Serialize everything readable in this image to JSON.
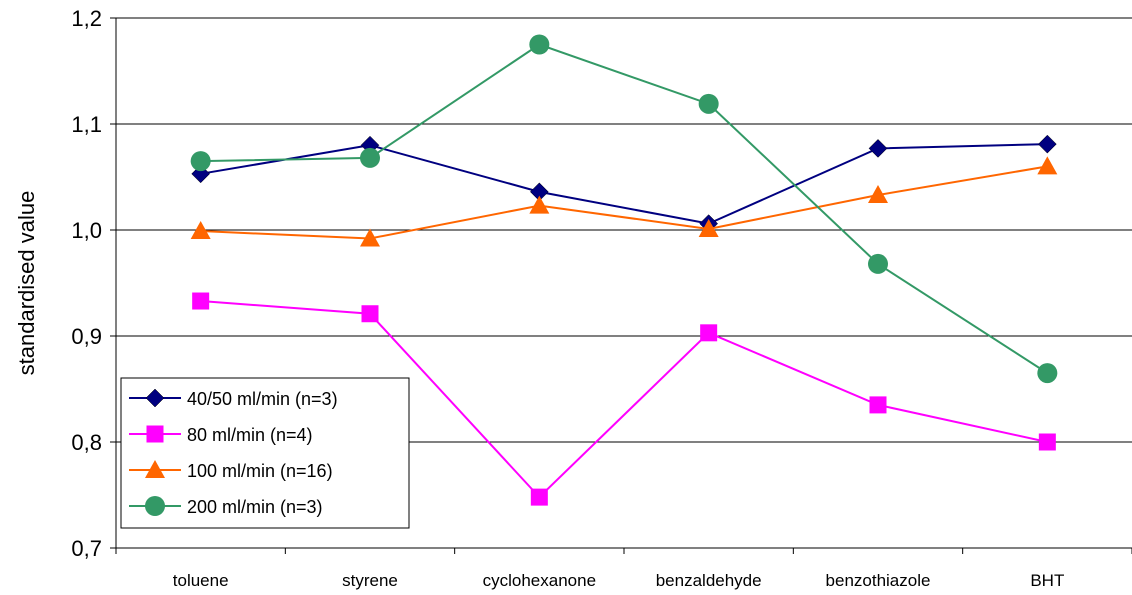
{
  "chart_data": {
    "type": "line",
    "title": "",
    "xlabel": "",
    "ylabel": "standardised value",
    "categories": [
      "toluene",
      "styrene",
      "cyclohexanone",
      "benzaldehyde",
      "benzothiazole",
      "BHT"
    ],
    "ylim": [
      0.7,
      1.2
    ],
    "yticks": [
      "0,7",
      "0,8",
      "0,9",
      "1,0",
      "1,1",
      "1,2"
    ],
    "grid": true,
    "legend_position": "bottom-left",
    "series": [
      {
        "name": "40/50 ml/min (n=3)",
        "values": [
          1.053,
          1.08,
          1.036,
          1.006,
          1.077,
          1.081
        ],
        "color": "#000080",
        "marker": "diamond"
      },
      {
        "name": "80 ml/min (n=4)",
        "values": [
          0.933,
          0.921,
          0.748,
          0.903,
          0.835,
          0.8
        ],
        "color": "#FF00FF",
        "marker": "square"
      },
      {
        "name": "100 ml/min (n=16)",
        "values": [
          0.999,
          0.992,
          1.023,
          1.001,
          1.033,
          1.06
        ],
        "color": "#FF6600",
        "marker": "triangle"
      },
      {
        "name": "200 ml/min (n=3)",
        "values": [
          1.065,
          1.068,
          1.175,
          1.119,
          0.968,
          0.865
        ],
        "color": "#339966",
        "marker": "circle"
      }
    ]
  }
}
